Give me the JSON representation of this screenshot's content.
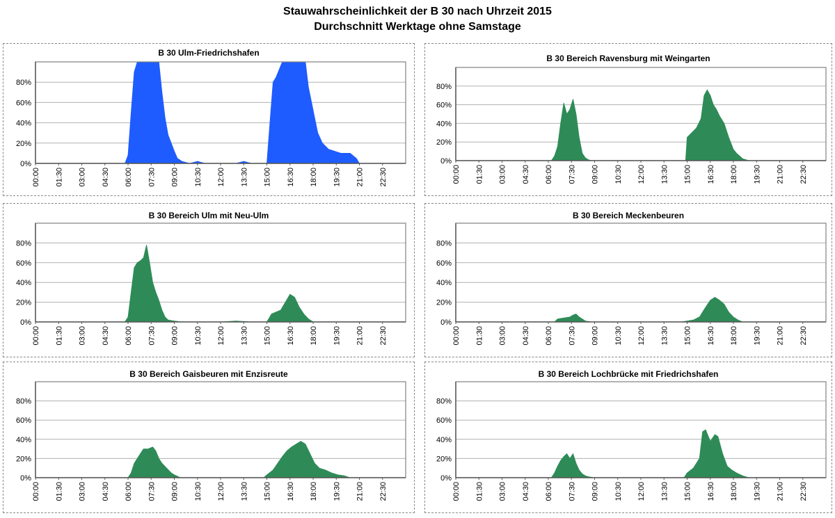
{
  "title": "Stauwahrscheinlichkeit der B 30 nach Uhrzeit 2015",
  "subtitle": "Durchschnitt Werktage ohne Samstage",
  "chart_data": [
    {
      "type": "area",
      "title": "B 30 Ulm-Friedrichshafen",
      "color": "#1f5cff",
      "ylim": [
        0,
        100
      ],
      "yticks": [
        "0%",
        "20%",
        "40%",
        "60%",
        "80%"
      ],
      "xticks": [
        "00:00",
        "01:30",
        "03:00",
        "04:30",
        "06:00",
        "07:30",
        "09:00",
        "10:30",
        "12:00",
        "13:30",
        "15:00",
        "16:30",
        "18:00",
        "19:30",
        "21:00",
        "22:30"
      ],
      "x_hours": [
        0,
        5.8,
        6.0,
        6.2,
        6.4,
        6.6,
        6.8,
        7.0,
        7.5,
        8.0,
        8.2,
        8.4,
        8.6,
        8.8,
        9.0,
        9.2,
        9.5,
        10.0,
        10.5,
        11.0,
        12.0,
        13.0,
        13.5,
        14.0,
        14.8,
        15.0,
        15.2,
        15.4,
        15.6,
        16.0,
        17.0,
        17.5,
        17.7,
        17.9,
        18.1,
        18.3,
        18.6,
        19.0,
        19.4,
        19.8,
        20.4,
        20.8,
        21.0,
        21.2,
        24
      ],
      "y_values": [
        0,
        0,
        8,
        50,
        90,
        100,
        100,
        100,
        100,
        100,
        70,
        45,
        28,
        20,
        12,
        5,
        2,
        0,
        2,
        0,
        0,
        0,
        2,
        0,
        0,
        0,
        40,
        80,
        85,
        100,
        100,
        100,
        75,
        60,
        45,
        30,
        20,
        14,
        12,
        10,
        10,
        5,
        0,
        0,
        0
      ]
    },
    {
      "type": "bar",
      "title": "B 30 Bereich Ravensburg mit Weingarten",
      "color": "#2e8b57",
      "ylim": [
        0,
        100
      ],
      "yticks": [
        "0%",
        "20%",
        "40%",
        "60%",
        "80%"
      ],
      "xticks": [
        "00:00",
        "01:30",
        "03:00",
        "04:30",
        "06:00",
        "07:30",
        "09:00",
        "10:30",
        "12:00",
        "13:30",
        "15:00",
        "16:30",
        "18:00",
        "19:30",
        "21:00",
        "22:30"
      ],
      "x_hours": [
        0,
        6.2,
        6.4,
        6.6,
        6.8,
        7.0,
        7.2,
        7.4,
        7.6,
        7.8,
        8.0,
        8.2,
        8.4,
        8.6,
        8.8,
        9.2,
        14.9,
        15.0,
        15.3,
        15.6,
        15.9,
        16.1,
        16.3,
        16.5,
        16.7,
        16.9,
        17.1,
        17.4,
        17.7,
        18.0,
        18.2,
        18.4,
        18.6,
        19.0,
        24
      ],
      "y_values": [
        0,
        0,
        5,
        15,
        40,
        62,
        50,
        55,
        66,
        50,
        25,
        8,
        3,
        1,
        0,
        0,
        0,
        25,
        30,
        35,
        45,
        70,
        76,
        70,
        60,
        55,
        48,
        40,
        25,
        12,
        8,
        5,
        2,
        0,
        0
      ]
    },
    {
      "type": "bar",
      "title": "B 30 Bereich Ulm mit Neu-Ulm",
      "color": "#2e8b57",
      "ylim": [
        0,
        100
      ],
      "yticks": [
        "0%",
        "20%",
        "40%",
        "60%",
        "80%"
      ],
      "xticks": [
        "00:00",
        "01:30",
        "03:00",
        "04:30",
        "06:00",
        "07:30",
        "09:00",
        "10:30",
        "12:00",
        "13:30",
        "15:00",
        "16:30",
        "18:00",
        "19:30",
        "21:00",
        "22:30"
      ],
      "x_hours": [
        0,
        5.8,
        6.0,
        6.2,
        6.4,
        6.6,
        6.8,
        7.0,
        7.2,
        7.4,
        7.6,
        7.8,
        8.0,
        8.2,
        8.4,
        8.6,
        9.0,
        9.5,
        10.0,
        12.0,
        13.0,
        14.0,
        15.0,
        15.3,
        15.6,
        15.9,
        16.2,
        16.5,
        16.8,
        17.1,
        17.4,
        17.7,
        18.0,
        24
      ],
      "y_values": [
        0,
        0,
        5,
        30,
        55,
        60,
        62,
        65,
        78,
        60,
        40,
        30,
        22,
        12,
        5,
        2,
        1,
        0,
        0,
        0,
        1,
        0,
        0,
        8,
        10,
        12,
        20,
        28,
        25,
        15,
        8,
        3,
        0,
        0
      ]
    },
    {
      "type": "bar",
      "title": "B 30 Bereich Meckenbeuren",
      "color": "#2e8b57",
      "ylim": [
        0,
        100
      ],
      "yticks": [
        "0%",
        "20%",
        "40%",
        "60%",
        "80%"
      ],
      "xticks": [
        "00:00",
        "01:30",
        "03:00",
        "04:30",
        "06:00",
        "07:30",
        "09:00",
        "10:30",
        "12:00",
        "13:30",
        "15:00",
        "16:30",
        "18:00",
        "19:30",
        "21:00",
        "22:30"
      ],
      "x_hours": [
        0,
        6.4,
        6.6,
        7.0,
        7.4,
        7.6,
        7.8,
        8.0,
        8.2,
        8.4,
        8.8,
        14.6,
        15.0,
        15.4,
        15.8,
        16.2,
        16.5,
        16.8,
        17.1,
        17.4,
        17.7,
        18.0,
        18.3,
        18.6,
        24
      ],
      "y_values": [
        0,
        0,
        3,
        4,
        5,
        7,
        8,
        5,
        3,
        1,
        0,
        0,
        1,
        2,
        5,
        15,
        22,
        25,
        22,
        18,
        10,
        5,
        2,
        0,
        0
      ]
    },
    {
      "type": "bar",
      "title": "B 30 Bereich Gaisbeuren mit Enzisreute",
      "color": "#2e8b57",
      "ylim": [
        0,
        100
      ],
      "yticks": [
        "0%",
        "20%",
        "40%",
        "60%",
        "80%"
      ],
      "xticks": [
        "00:00",
        "01:30",
        "03:00",
        "04:30",
        "06:00",
        "07:30",
        "09:00",
        "10:30",
        "12:00",
        "13:30",
        "15:00",
        "16:30",
        "18:00",
        "19:30",
        "21:00",
        "22:30"
      ],
      "x_hours": [
        0,
        6.0,
        6.2,
        6.4,
        6.6,
        6.8,
        7.0,
        7.3,
        7.6,
        7.8,
        8.0,
        8.2,
        8.5,
        8.8,
        9.0,
        9.4,
        14.8,
        15.0,
        15.4,
        15.7,
        16.0,
        16.3,
        16.6,
        16.9,
        17.2,
        17.5,
        17.8,
        18.1,
        18.4,
        18.8,
        19.2,
        19.6,
        20.0,
        20.4,
        24
      ],
      "y_values": [
        0,
        0,
        5,
        15,
        20,
        25,
        30,
        30,
        32,
        28,
        20,
        15,
        10,
        5,
        3,
        0,
        0,
        3,
        8,
        15,
        22,
        28,
        32,
        35,
        38,
        35,
        25,
        15,
        10,
        8,
        5,
        3,
        2,
        0,
        0
      ]
    },
    {
      "type": "bar",
      "title": "B 30 Bereich Lochbrücke mit Friedrichshafen",
      "color": "#2e8b57",
      "ylim": [
        0,
        100
      ],
      "yticks": [
        "0%",
        "20%",
        "40%",
        "60%",
        "80%"
      ],
      "xticks": [
        "00:00",
        "01:30",
        "03:00",
        "04:30",
        "06:00",
        "07:30",
        "09:00",
        "10:30",
        "12:00",
        "13:30",
        "15:00",
        "16:30",
        "18:00",
        "19:30",
        "21:00",
        "22:30"
      ],
      "x_hours": [
        0,
        6.2,
        6.4,
        6.6,
        6.8,
        7.0,
        7.2,
        7.4,
        7.6,
        7.8,
        8.0,
        8.2,
        8.4,
        8.6,
        9.0,
        14.8,
        15.0,
        15.4,
        15.8,
        16.0,
        16.2,
        16.5,
        16.8,
        17.0,
        17.3,
        17.6,
        17.9,
        18.2,
        18.6,
        19.0,
        24
      ],
      "y_values": [
        0,
        0,
        5,
        12,
        18,
        22,
        25,
        20,
        25,
        15,
        8,
        4,
        2,
        1,
        0,
        0,
        5,
        10,
        20,
        48,
        50,
        38,
        45,
        43,
        25,
        12,
        8,
        5,
        2,
        0,
        0
      ]
    }
  ]
}
